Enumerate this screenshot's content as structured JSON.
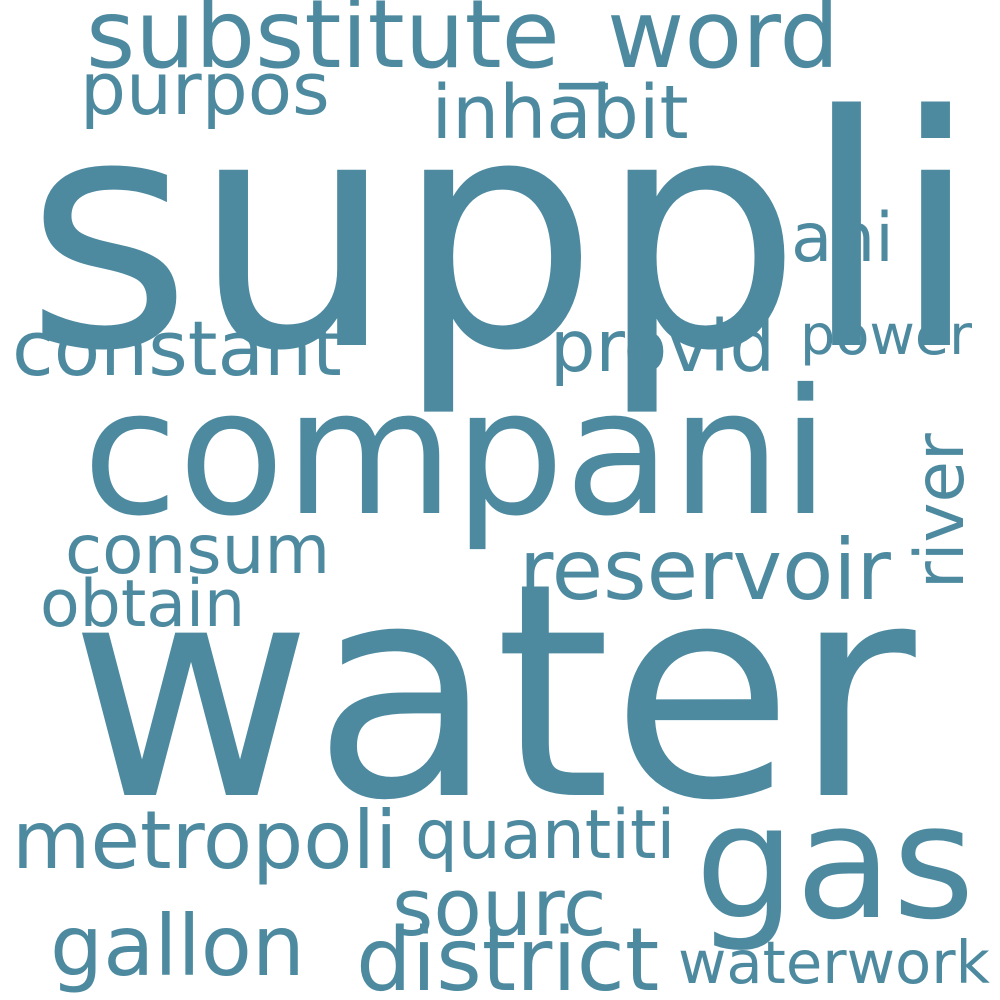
{
  "background_color": "#ffffff",
  "word_color": "#4d8aa0",
  "words": [
    {
      "text": "water",
      "orientation": "horizontal"
    },
    {
      "text": "suppli",
      "orientation": "horizontal"
    },
    {
      "text": "compani",
      "orientation": "horizontal"
    },
    {
      "text": "gas",
      "orientation": "horizontal"
    },
    {
      "text": "substitute_word",
      "orientation": "horizontal"
    },
    {
      "text": "reservoir",
      "orientation": "horizontal"
    },
    {
      "text": "constant",
      "orientation": "horizontal"
    },
    {
      "text": "consum",
      "orientation": "horizontal"
    },
    {
      "text": "metropoli",
      "orientation": "horizontal"
    },
    {
      "text": "quantiti",
      "orientation": "horizontal"
    },
    {
      "text": "district",
      "orientation": "horizontal"
    },
    {
      "text": "waterwork",
      "orientation": "horizontal"
    },
    {
      "text": "gallon",
      "orientation": "horizontal"
    },
    {
      "text": "sourc",
      "orientation": "horizontal"
    },
    {
      "text": "purpos",
      "orientation": "horizontal"
    },
    {
      "text": "inhabit",
      "orientation": "horizontal"
    },
    {
      "text": "provid",
      "orientation": "horizontal"
    },
    {
      "text": "power",
      "orientation": "horizontal"
    },
    {
      "text": "ani",
      "orientation": "horizontal"
    },
    {
      "text": "river",
      "orientation": "vertical"
    },
    {
      "text": "obtain",
      "orientation": "horizontal"
    }
  ]
}
